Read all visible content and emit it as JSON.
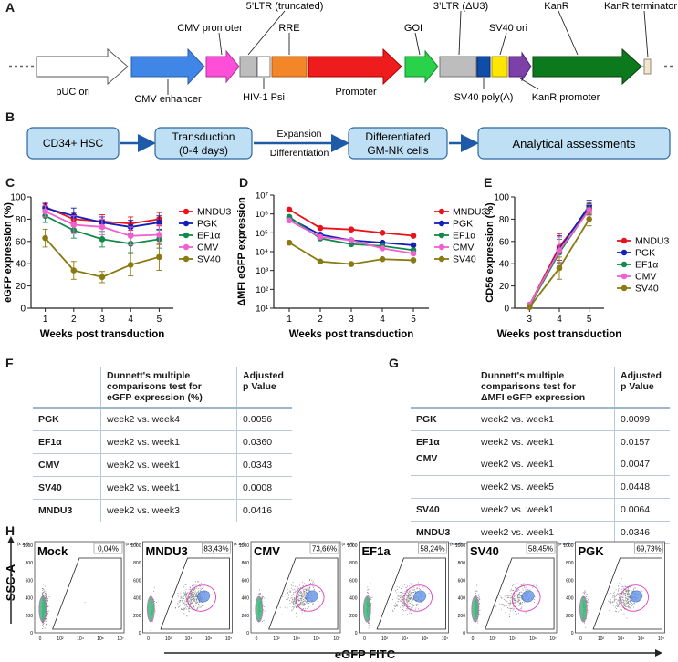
{
  "panel_labels": {
    "a": "A",
    "b": "B",
    "c": "C",
    "d": "D",
    "e": "E",
    "f": "F",
    "g": "G",
    "h": "H"
  },
  "vector": {
    "top_labels": [
      "CMV promoter",
      "5’LTR (truncated)",
      "RRE",
      "GOI",
      "3’LTR (ΔU3)",
      "SV40 ori",
      "KanR",
      "KanR terminator"
    ],
    "bottom_labels": [
      "pUC ori",
      "CMV enhancer",
      "HIV-1 Psi",
      "Promoter",
      "SV40 poly(A)",
      "KanR promoter"
    ],
    "colors": {
      "puc": "#ffffff",
      "cmv_enh": "#3f86e6",
      "cmv_pro": "#ff4fd8",
      "ltr": "#bdbdbd",
      "psi": "#ffffff",
      "rre": "#f4862a",
      "promoter": "#ee1c1c",
      "goi": "#2ad14a",
      "sv40_polya": "#0f4da8",
      "sv40_ori": "#ffe600",
      "kanr_pro": "#7d3fa8",
      "kanr": "#0c7a1c",
      "kanr_term": "#f5e6c8"
    }
  },
  "workflow": {
    "steps": [
      "CD34+ HSC",
      "Transduction (0-4 days)",
      "Differentiated GM-NK cells",
      "Analytical assessments"
    ],
    "step1_line1": "Transduction",
    "step1_line2": "(0-4 days)",
    "step2_line1": "Differentiated",
    "step2_line2": "GM-NK cells",
    "arrow_top": "Expansion",
    "arrow_bottom": "Differentiation",
    "box_color": "#bfe0f4",
    "arrow_color": "#1f5aa8"
  },
  "series_colors": {
    "MNDU3": "#e8131b",
    "PGK": "#1020b8",
    "EF1α": "#108a4a",
    "CMV": "#f060d0",
    "SV40": "#8a7a12"
  },
  "chart_data": [
    {
      "type": "line",
      "id": "C",
      "title": "",
      "xlabel": "Weeks post transduction",
      "ylabel": "eGFP expression (%)",
      "x": [
        1,
        2,
        3,
        4,
        5
      ],
      "xlim": [
        0.5,
        5.5
      ],
      "ylim": [
        0,
        100
      ],
      "yticks": [
        0,
        20,
        40,
        60,
        80,
        100
      ],
      "series": [
        {
          "name": "MNDU3",
          "values": [
            91,
            80,
            78,
            76,
            80
          ],
          "err": [
            4,
            6,
            6,
            6,
            6
          ]
        },
        {
          "name": "PGK",
          "values": [
            90,
            83,
            77,
            73,
            77
          ],
          "err": [
            4,
            7,
            5,
            6,
            6
          ]
        },
        {
          "name": "EF1α",
          "values": [
            83,
            70,
            62,
            58,
            62
          ],
          "err": [
            6,
            7,
            7,
            8,
            8
          ]
        },
        {
          "name": "CMV",
          "values": [
            87,
            75,
            73,
            65,
            66
          ],
          "err": [
            5,
            8,
            7,
            8,
            9
          ]
        },
        {
          "name": "SV40",
          "values": [
            63,
            34,
            28,
            39,
            46
          ],
          "err": [
            8,
            8,
            5,
            10,
            12
          ]
        }
      ],
      "legend": [
        "MNDU3",
        "PGK",
        "EF1α",
        "CMV",
        "SV40"
      ]
    },
    {
      "type": "line",
      "id": "D",
      "title": "",
      "xlabel": "Weeks post transduction",
      "ylabel": "ΔMFI eGFP expression",
      "x": [
        1,
        2,
        3,
        4,
        5
      ],
      "xlim": [
        0.5,
        5.5
      ],
      "ylim_log10": [
        1,
        7
      ],
      "yscale": "log",
      "ytick_labels": [
        "10¹",
        "10²",
        "10³",
        "10⁴",
        "10⁵",
        "10⁶",
        "10⁷"
      ],
      "series": [
        {
          "name": "MNDU3",
          "values": [
            1700000,
            180000,
            150000,
            100000,
            70000
          ]
        },
        {
          "name": "PGK",
          "values": [
            600000,
            80000,
            40000,
            30000,
            22000
          ]
        },
        {
          "name": "EF1α",
          "values": [
            700000,
            50000,
            25000,
            20000,
            12000
          ]
        },
        {
          "name": "CMV",
          "values": [
            450000,
            60000,
            40000,
            15000,
            8000
          ]
        },
        {
          "name": "SV40",
          "values": [
            30000,
            3000,
            2200,
            4000,
            3500
          ]
        }
      ],
      "legend": [
        "MNDU3",
        "PGK",
        "EF1α",
        "CMV",
        "SV40"
      ]
    },
    {
      "type": "line",
      "id": "E",
      "title": "",
      "xlabel": "Weeks post transduction",
      "ylabel": "CD56 expression (%)",
      "x": [
        3,
        4,
        5
      ],
      "xlim": [
        2.5,
        5.5
      ],
      "ylim": [
        0,
        100
      ],
      "yticks": [
        0,
        20,
        40,
        60,
        80,
        100
      ],
      "series": [
        {
          "name": "MNDU3",
          "values": [
            3,
            55,
            90
          ],
          "err": [
            2,
            12,
            5
          ]
        },
        {
          "name": "PGK",
          "values": [
            2,
            53,
            92
          ],
          "err": [
            2,
            12,
            5
          ]
        },
        {
          "name": "EF1α",
          "values": [
            2,
            50,
            89
          ],
          "err": [
            2,
            12,
            5
          ]
        },
        {
          "name": "CMV",
          "values": [
            3,
            52,
            88
          ],
          "err": [
            2,
            12,
            5
          ]
        },
        {
          "name": "SV40",
          "values": [
            1,
            36,
            80
          ],
          "err": [
            2,
            10,
            6
          ]
        }
      ],
      "legend": [
        "MNDU3",
        "PGK",
        "EF1α",
        "CMV",
        "SV40"
      ]
    }
  ],
  "table_f": {
    "header_test": [
      "Dunnett's multiple",
      "comparisons test for",
      "eGFP expression (%)"
    ],
    "header_p": [
      "Adjusted",
      "p Value"
    ],
    "rows": [
      {
        "group": "PGK",
        "comparison": "week2 vs. week4",
        "p": "0.0056"
      },
      {
        "group": "EF1α",
        "comparison": "week2 vs. week1",
        "p": "0.0360"
      },
      {
        "group": "CMV",
        "comparison": "week2 vs. week1",
        "p": "0.0343"
      },
      {
        "group": "SV40",
        "comparison": "week2 vs. week1",
        "p": "0.0008"
      },
      {
        "group": "MNDU3",
        "comparison": "week2 vs. week3",
        "p": "0.0416"
      }
    ]
  },
  "table_g": {
    "header_test": [
      "Dunnett's multiple",
      "comparisons test for",
      "ΔMFI eGFP expression"
    ],
    "header_p": [
      "Adjusted",
      "p Value"
    ],
    "rows": [
      {
        "group": "PGK",
        "comparison": "week2 vs. week1",
        "p": "0.0099"
      },
      {
        "group": "EF1α",
        "comparison": "week2 vs. week1",
        "p": "0.0157"
      },
      {
        "group": "CMV",
        "comparison": "week2 vs. week1",
        "p": "0.0047"
      },
      {
        "group": "",
        "comparison": "week2 vs. week5",
        "p": "0.0448"
      },
      {
        "group": "SV40",
        "comparison": "week2 vs. week1",
        "p": "0.0064"
      },
      {
        "group": "MNDU3",
        "comparison": "week2 vs. week1",
        "p": "0.0346"
      }
    ]
  },
  "flow": {
    "ylabel": "SSC-A",
    "xlabel": "eGFP FITC",
    "y_multiplier": "(x 10³)",
    "yticks": [
      "0",
      "200",
      "400",
      "600",
      "800",
      "1000"
    ],
    "xticks": [
      "0",
      "10²",
      "10⁴",
      "10⁶",
      "10⁷"
    ],
    "panels": [
      {
        "name": "Mock",
        "gate": "0,04%",
        "fraction": 0.0004
      },
      {
        "name": "MNDU3",
        "gate": "83,43%",
        "fraction": 0.8343
      },
      {
        "name": "CMV",
        "gate": "73,66%",
        "fraction": 0.7366
      },
      {
        "name": "EF1a",
        "gate": "58,24%",
        "fraction": 0.5824
      },
      {
        "name": "SV40",
        "gate": "58,45%",
        "fraction": 0.5845
      },
      {
        "name": "PGK",
        "gate": "69,73%",
        "fraction": 0.6973
      }
    ]
  }
}
